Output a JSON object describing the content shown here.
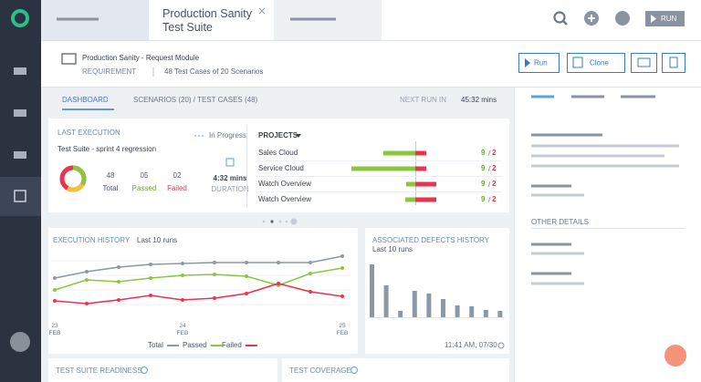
{
  "tab": {
    "title": "Production Sanity Test Suite"
  },
  "toolbar": {
    "run": "RUN"
  },
  "header": {
    "title": "Production Sanity - Request Module",
    "type": "REQUIREMENT",
    "summary": "48 Test Cases of 20 Scenarios",
    "buttons": [
      "Run",
      "Clone"
    ]
  },
  "nav": {
    "tabs": [
      "DASHBOARD",
      "SCENARIOS (20) / TEST CASES (48)"
    ],
    "next_run_label": "NEXT RUN IN",
    "next_run_value": "45:32 mins"
  },
  "last_execution": {
    "title": "LAST EXECUTION",
    "status": "In Progress",
    "suite": "Test Suite - sprint 4 regression",
    "stats": [
      {
        "value": "48",
        "label": "Total"
      },
      {
        "value": "05",
        "label": "Passed"
      },
      {
        "value": "02",
        "label": "Failed"
      }
    ],
    "duration": "4:32 mins",
    "duration_label": "DURATION"
  },
  "projects": {
    "title": "PROJECTS",
    "rows": [
      {
        "name": "Sales Cloud",
        "passed_bar": 35,
        "failed_bar": 12,
        "passed": "9",
        "failed": "2"
      },
      {
        "name": "Service Cloud",
        "passed_bar": 70,
        "failed_bar": 12,
        "passed": "9",
        "failed": "2"
      },
      {
        "name": "Watch Overview",
        "passed_bar": 10,
        "failed_bar": 23,
        "passed": "9",
        "failed": "2"
      },
      {
        "name": "Watch Overview",
        "passed_bar": 11,
        "failed_bar": 23,
        "passed": "9",
        "failed": "2"
      }
    ]
  },
  "chart_data": [
    {
      "type": "line",
      "title": "EXECUTION HISTORY",
      "subtitle": "Last 10 runs",
      "categories": [
        "23 FEB",
        null,
        null,
        null,
        "24 FEB",
        null,
        null,
        null,
        null,
        "25 FEB"
      ],
      "ylim": [
        0,
        80
      ],
      "series": [
        {
          "name": "Total",
          "color": "#8c97a8",
          "values": [
            45,
            52,
            57,
            60,
            61,
            62,
            62,
            62,
            62,
            69
          ]
        },
        {
          "name": "Passed",
          "color": "#8cc63f",
          "values": [
            32,
            43,
            41,
            45,
            48,
            49,
            47,
            37,
            50,
            56
          ]
        },
        {
          "name": "Failed",
          "color": "#e8344e",
          "values": [
            20,
            17,
            21,
            26,
            21,
            23,
            28,
            39,
            30,
            25
          ]
        }
      ]
    },
    {
      "type": "bar",
      "title": "ASSOCIATED DEFECTS HISTORY",
      "subtitle": "Last 10 runs",
      "values": [
        58,
        35,
        7,
        29,
        26,
        20,
        13,
        12,
        8,
        7
      ],
      "color": "#8c97a8",
      "ylim": [
        0,
        60
      ],
      "timestamp": "11:41 AM, 07/30"
    }
  ],
  "cards": [
    "TEST SUITE READINESS",
    "TEST COVERAGE"
  ],
  "details": {
    "title": "OTHER DETAILS"
  }
}
